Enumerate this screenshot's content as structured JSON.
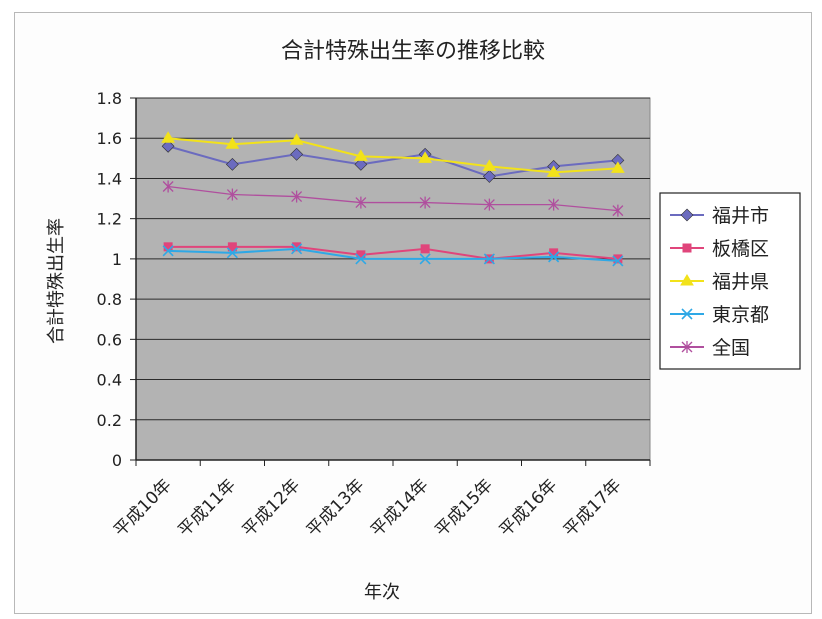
{
  "chart_data": {
    "type": "line",
    "title": "合計特殊出生率の推移比較",
    "xlabel": "年次",
    "ylabel": "合計特殊出生率",
    "categories": [
      "平成10年",
      "平成11年",
      "平成12年",
      "平成13年",
      "平成14年",
      "平成15年",
      "平成16年",
      "平成17年"
    ],
    "ylim": [
      0,
      1.8
    ],
    "yticks": [
      "0",
      "0.2",
      "0.4",
      "0.6",
      "0.8",
      "1",
      "1.2",
      "1.4",
      "1.6",
      "1.8"
    ],
    "grid": true,
    "legend_position": "right",
    "plot_background": "#b3b3b3",
    "series": [
      {
        "name": "福井市",
        "color": "#6b6bbf",
        "marker": "diamond",
        "values": [
          1.56,
          1.47,
          1.52,
          1.47,
          1.52,
          1.41,
          1.46,
          1.49
        ]
      },
      {
        "name": "板橋区",
        "color": "#e0457b",
        "marker": "square",
        "values": [
          1.06,
          1.06,
          1.06,
          1.02,
          1.05,
          1.0,
          1.03,
          1.0
        ]
      },
      {
        "name": "福井県",
        "color": "#f2e21a",
        "marker": "triangle",
        "values": [
          1.6,
          1.57,
          1.59,
          1.51,
          1.5,
          1.46,
          1.43,
          1.45
        ]
      },
      {
        "name": "東京都",
        "color": "#2ea8e6",
        "marker": "x",
        "values": [
          1.04,
          1.03,
          1.05,
          1.0,
          1.0,
          1.0,
          1.01,
          0.99
        ]
      },
      {
        "name": "全国",
        "color": "#b04f9e",
        "marker": "star",
        "values": [
          1.36,
          1.32,
          1.31,
          1.28,
          1.28,
          1.27,
          1.27,
          1.24
        ]
      }
    ]
  }
}
